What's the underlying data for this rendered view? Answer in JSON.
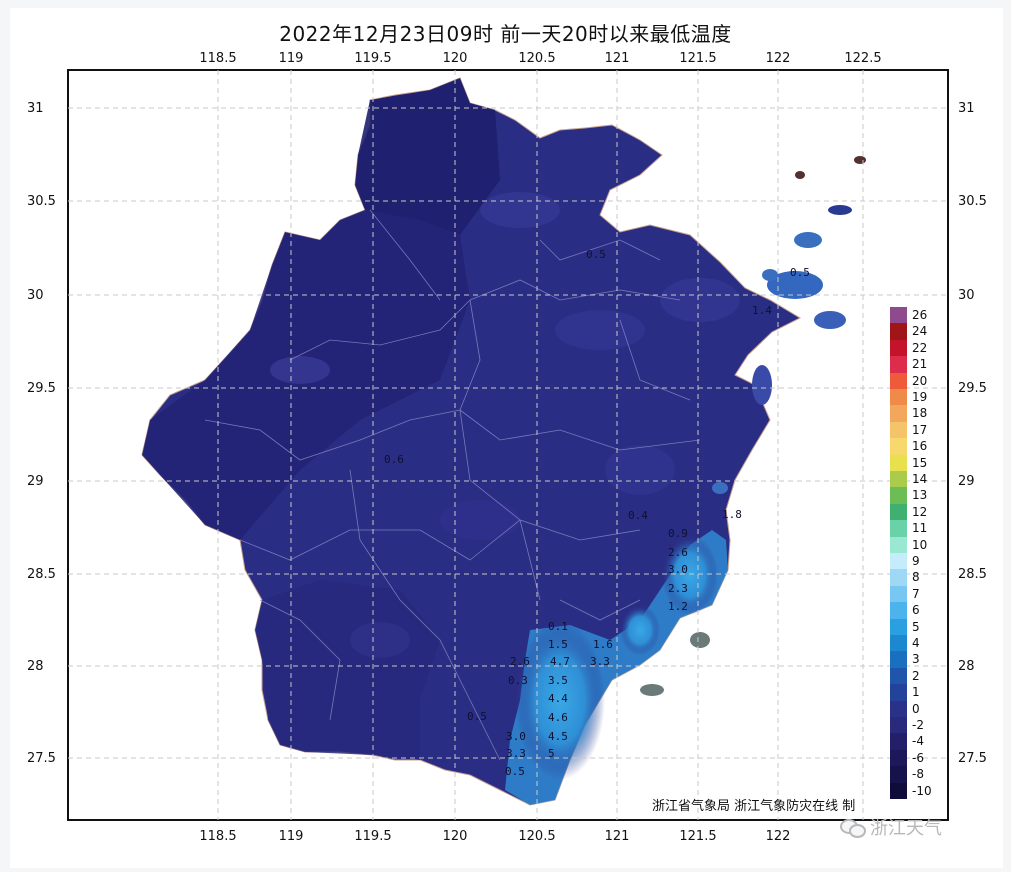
{
  "title": "2022年12月23日09时  前一天20时以来最低温度",
  "axes": {
    "lon_ticks": [
      "118.5",
      "119",
      "119.5",
      "120",
      "120.5",
      "121",
      "121.5",
      "122",
      "122.5"
    ],
    "lat_ticks": [
      "31",
      "30.5",
      "30",
      "29.5",
      "29",
      "28.5",
      "28",
      "27.5"
    ]
  },
  "map_labels": [
    {
      "text": "0.5"
    },
    {
      "text": "0.6"
    },
    {
      "text": "0.4"
    },
    {
      "text": "0.9"
    },
    {
      "text": "2.6"
    },
    {
      "text": "1.8"
    },
    {
      "text": "3.0"
    },
    {
      "text": "2.3"
    },
    {
      "text": "1.2"
    },
    {
      "text": "0.1"
    },
    {
      "text": "1.5"
    },
    {
      "text": "1.6"
    },
    {
      "text": "2.6"
    },
    {
      "text": "4.7"
    },
    {
      "text": "3.3"
    },
    {
      "text": "0.3"
    },
    {
      "text": "3.5"
    },
    {
      "text": "4.4"
    },
    {
      "text": "4.6"
    },
    {
      "text": "0.5"
    },
    {
      "text": "3.0"
    },
    {
      "text": "4.5"
    },
    {
      "text": "3.3"
    },
    {
      "text": "5"
    },
    {
      "text": "0.5"
    },
    {
      "text": "0.5"
    },
    {
      "text": "1.4"
    }
  ],
  "legend": {
    "labels": [
      "26",
      "24",
      "22",
      "21",
      "20",
      "19",
      "18",
      "17",
      "16",
      "15",
      "14",
      "13",
      "12",
      "11",
      "10",
      "9",
      "8",
      "7",
      "6",
      "5",
      "4",
      "3",
      "2",
      "1",
      "0",
      "-2",
      "-4",
      "-6",
      "-8",
      "-10"
    ],
    "colors": [
      "#8e4a8c",
      "#a01518",
      "#c3142c",
      "#dd2c4c",
      "#ee5a3a",
      "#f08a48",
      "#f3a75c",
      "#f5c46a",
      "#f7d86d",
      "#e8e04c",
      "#a9cc4c",
      "#6cbd55",
      "#3fb06f",
      "#6ad2a8",
      "#9be8d2",
      "#c5ecfa",
      "#9ed8f5",
      "#78c7f2",
      "#4cb3ec",
      "#2ba0e0",
      "#1c88d0",
      "#1b6fc0",
      "#1f55aa",
      "#23429a",
      "#293288",
      "#2a2a7c",
      "#241f6a",
      "#1d185a",
      "#16124b",
      "#0f0c3c"
    ]
  },
  "credit": "浙江省气象局  浙江气象防灾在线  制",
  "watermark": "浙江天气"
}
